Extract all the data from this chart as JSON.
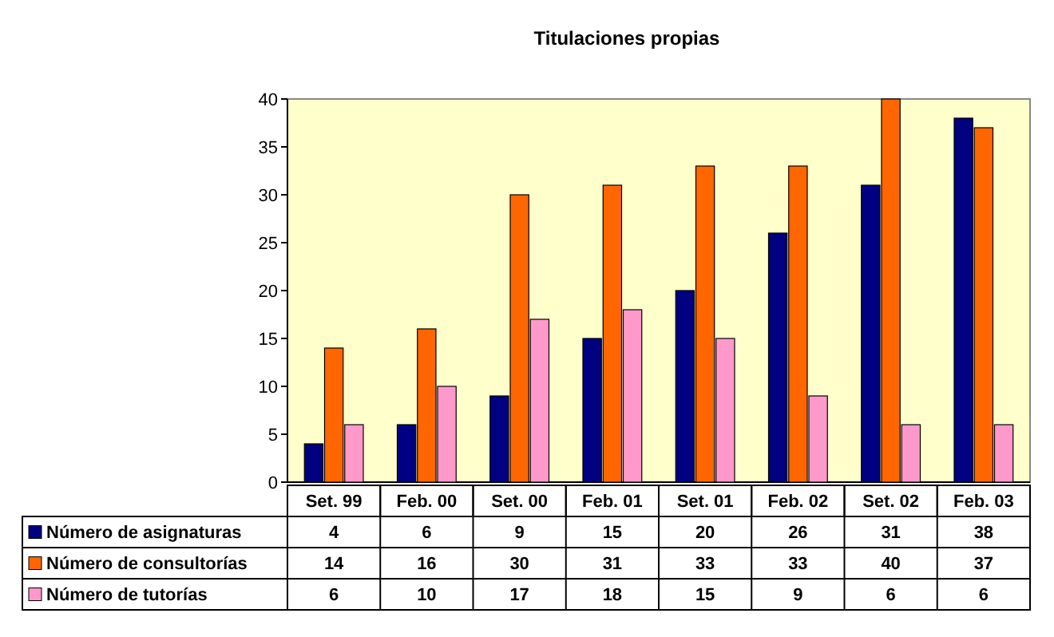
{
  "chart_data": {
    "type": "bar",
    "title": "Titulaciones propias",
    "categories": [
      "Set. 99",
      "Feb. 00",
      "Set. 00",
      "Feb. 01",
      "Set. 01",
      "Feb. 02",
      "Set. 02",
      "Feb. 03"
    ],
    "series": [
      {
        "name": "Número de asignaturas",
        "color": "#000080",
        "values": [
          4,
          6,
          9,
          15,
          20,
          26,
          31,
          38
        ]
      },
      {
        "name": "Número de consultorías",
        "color": "#ff6600",
        "values": [
          14,
          16,
          30,
          31,
          33,
          33,
          40,
          37
        ]
      },
      {
        "name": "Número de tutorías",
        "color": "#ff99cc",
        "values": [
          6,
          10,
          17,
          18,
          15,
          9,
          6,
          6
        ]
      }
    ],
    "ylim": [
      0,
      40
    ],
    "yticks": [
      0,
      5,
      10,
      15,
      20,
      25,
      30,
      35,
      40
    ],
    "grid": false,
    "legend": "bottom",
    "data_labels": true
  }
}
